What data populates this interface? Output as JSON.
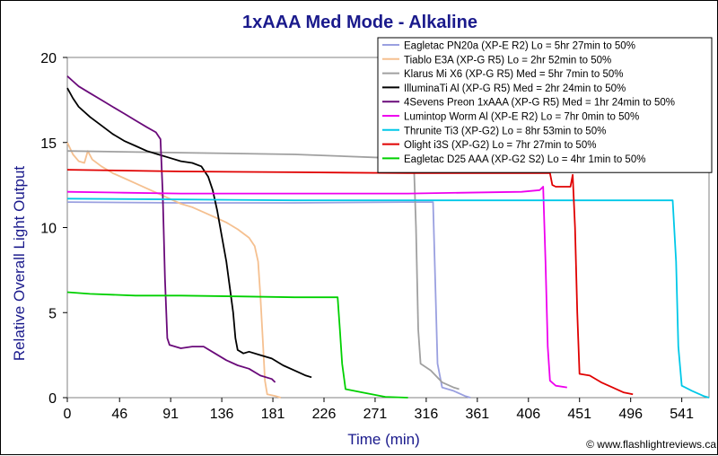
{
  "chart_data": {
    "type": "line",
    "title": "1xAAA Med Mode - Alkaline",
    "xlabel": "Time (min)",
    "ylabel": "Relative Overall Light Output",
    "xlim": [
      0,
      565
    ],
    "ylim": [
      0,
      20
    ],
    "xticks": [
      0,
      46,
      91,
      136,
      181,
      226,
      271,
      316,
      361,
      406,
      451,
      496,
      541
    ],
    "yticks": [
      0,
      5,
      10,
      15,
      20
    ],
    "grid": false,
    "legend_position": "top-right",
    "credit": "© www.flashlightreviews.ca",
    "series": [
      {
        "name": "Eagletac PN20a (XP-E R2) Lo = 5hr 27min to 50%",
        "color": "#9aa0e0",
        "points": [
          [
            0,
            11.5
          ],
          [
            100,
            11.45
          ],
          [
            200,
            11.45
          ],
          [
            300,
            11.5
          ],
          [
            322,
            11.5
          ],
          [
            326,
            2
          ],
          [
            330,
            0.6
          ],
          [
            340,
            0.4
          ],
          [
            350,
            0.1
          ],
          [
            355,
            0
          ]
        ]
      },
      {
        "name": "Tiablo E3A (XP-G R5) Lo = 2hr 52min to 50%",
        "color": "#f5c090",
        "points": [
          [
            0,
            15
          ],
          [
            5,
            14.3
          ],
          [
            10,
            13.9
          ],
          [
            15,
            13.8
          ],
          [
            18,
            14.5
          ],
          [
            22,
            14.0
          ],
          [
            30,
            13.6
          ],
          [
            40,
            13.2
          ],
          [
            50,
            12.9
          ],
          [
            60,
            12.6
          ],
          [
            70,
            12.3
          ],
          [
            80,
            12.0
          ],
          [
            90,
            11.7
          ],
          [
            100,
            11.4
          ],
          [
            110,
            11.2
          ],
          [
            120,
            10.9
          ],
          [
            130,
            10.6
          ],
          [
            140,
            10.3
          ],
          [
            150,
            9.9
          ],
          [
            160,
            9.4
          ],
          [
            165,
            8.9
          ],
          [
            168,
            8.0
          ],
          [
            170,
            6.0
          ],
          [
            172,
            3.5
          ],
          [
            174,
            1.0
          ],
          [
            176,
            0.2
          ],
          [
            183,
            0.1
          ],
          [
            188,
            0
          ]
        ]
      },
      {
        "name": "Klarus Mi X6 (XP-G R5) Med = 5hr 7min to 50%",
        "color": "#a0a0a0",
        "points": [
          [
            0,
            14.5
          ],
          [
            100,
            14.4
          ],
          [
            200,
            14.3
          ],
          [
            280,
            14.1
          ],
          [
            305,
            14.0
          ],
          [
            307,
            10
          ],
          [
            309,
            4
          ],
          [
            311,
            2
          ],
          [
            320,
            1.6
          ],
          [
            330,
            0.9
          ],
          [
            340,
            0.6
          ],
          [
            345,
            0.5
          ]
        ]
      },
      {
        "name": "IlluminaTi Al (XP-G R5) Med = 2hr 24min to 50%",
        "color": "#000000",
        "points": [
          [
            0,
            18.2
          ],
          [
            5,
            17.6
          ],
          [
            10,
            17.1
          ],
          [
            20,
            16.5
          ],
          [
            30,
            16.0
          ],
          [
            40,
            15.5
          ],
          [
            50,
            15.1
          ],
          [
            60,
            14.8
          ],
          [
            70,
            14.5
          ],
          [
            80,
            14.3
          ],
          [
            90,
            14.1
          ],
          [
            100,
            13.9
          ],
          [
            110,
            13.8
          ],
          [
            118,
            13.6
          ],
          [
            124,
            13.0
          ],
          [
            128,
            12.2
          ],
          [
            132,
            11.0
          ],
          [
            136,
            9.5
          ],
          [
            140,
            8.0
          ],
          [
            143,
            6.5
          ],
          [
            146,
            5.0
          ],
          [
            148,
            3.5
          ],
          [
            150,
            2.8
          ],
          [
            155,
            2.6
          ],
          [
            160,
            2.7
          ],
          [
            170,
            2.5
          ],
          [
            180,
            2.3
          ],
          [
            190,
            1.9
          ],
          [
            200,
            1.6
          ],
          [
            210,
            1.3
          ],
          [
            215,
            1.2
          ]
        ]
      },
      {
        "name": "4Sevens Preon 1xAAA (XP-G R5) Med = 1hr 24min to 50%",
        "color": "#6a0a7a",
        "points": [
          [
            0,
            18.9
          ],
          [
            5,
            18.6
          ],
          [
            10,
            18.3
          ],
          [
            20,
            17.9
          ],
          [
            30,
            17.5
          ],
          [
            40,
            17.1
          ],
          [
            50,
            16.7
          ],
          [
            60,
            16.3
          ],
          [
            70,
            15.9
          ],
          [
            78,
            15.6
          ],
          [
            82,
            15.2
          ],
          [
            84,
            12
          ],
          [
            86,
            7
          ],
          [
            88,
            3.5
          ],
          [
            90,
            3.1
          ],
          [
            100,
            2.9
          ],
          [
            110,
            3.0
          ],
          [
            120,
            3.0
          ],
          [
            130,
            2.6
          ],
          [
            140,
            2.2
          ],
          [
            150,
            1.9
          ],
          [
            160,
            1.7
          ],
          [
            170,
            1.3
          ],
          [
            180,
            1.1
          ],
          [
            183,
            0.9
          ]
        ]
      },
      {
        "name": "Lumintop Worm Al (XP-E R2) Lo = 7hr 0min to 50%",
        "color": "#ee00ee",
        "points": [
          [
            0,
            12.1
          ],
          [
            50,
            12.05
          ],
          [
            100,
            12.0
          ],
          [
            200,
            12.0
          ],
          [
            300,
            12.0
          ],
          [
            400,
            12.1
          ],
          [
            416,
            12.2
          ],
          [
            419,
            12.4
          ],
          [
            421,
            8
          ],
          [
            423,
            3
          ],
          [
            425,
            1.0
          ],
          [
            430,
            0.7
          ],
          [
            440,
            0.6
          ]
        ]
      },
      {
        "name": "Thrunite Ti3 (XP-G2) Lo = 8hr 53min to 50%",
        "color": "#00c8e8",
        "points": [
          [
            0,
            11.7
          ],
          [
            100,
            11.65
          ],
          [
            200,
            11.6
          ],
          [
            300,
            11.6
          ],
          [
            400,
            11.6
          ],
          [
            500,
            11.6
          ],
          [
            533,
            11.6
          ],
          [
            536,
            8
          ],
          [
            538,
            3
          ],
          [
            541,
            0.7
          ],
          [
            550,
            0.4
          ],
          [
            560,
            0.1
          ],
          [
            565,
            0
          ]
        ]
      },
      {
        "name": "Olight i3S (XP-G2) Lo = 7hr 27min to 50%",
        "color": "#e00000",
        "points": [
          [
            0,
            13.4
          ],
          [
            100,
            13.3
          ],
          [
            200,
            13.25
          ],
          [
            300,
            13.2
          ],
          [
            400,
            13.2
          ],
          [
            425,
            13.2
          ],
          [
            427,
            12.5
          ],
          [
            430,
            12.4
          ],
          [
            440,
            12.4
          ],
          [
            443,
            12.4
          ],
          [
            445,
            13.1
          ],
          [
            447,
            10
          ],
          [
            449,
            5
          ],
          [
            451,
            1.4
          ],
          [
            460,
            1.3
          ],
          [
            470,
            0.9
          ],
          [
            480,
            0.6
          ],
          [
            490,
            0.3
          ],
          [
            498,
            0.2
          ]
        ]
      },
      {
        "name": "Eagletac D25 AAA (XP-G2 S2) Lo = 4hr 1min to 50%",
        "color": "#00d000",
        "points": [
          [
            0,
            6.2
          ],
          [
            20,
            6.1
          ],
          [
            60,
            6.0
          ],
          [
            100,
            6.0
          ],
          [
            150,
            5.95
          ],
          [
            200,
            5.9
          ],
          [
            238,
            5.9
          ],
          [
            240,
            4
          ],
          [
            242,
            2
          ],
          [
            245,
            0.5
          ],
          [
            260,
            0.3
          ],
          [
            280,
            0.05
          ],
          [
            300,
            0
          ]
        ]
      }
    ]
  }
}
